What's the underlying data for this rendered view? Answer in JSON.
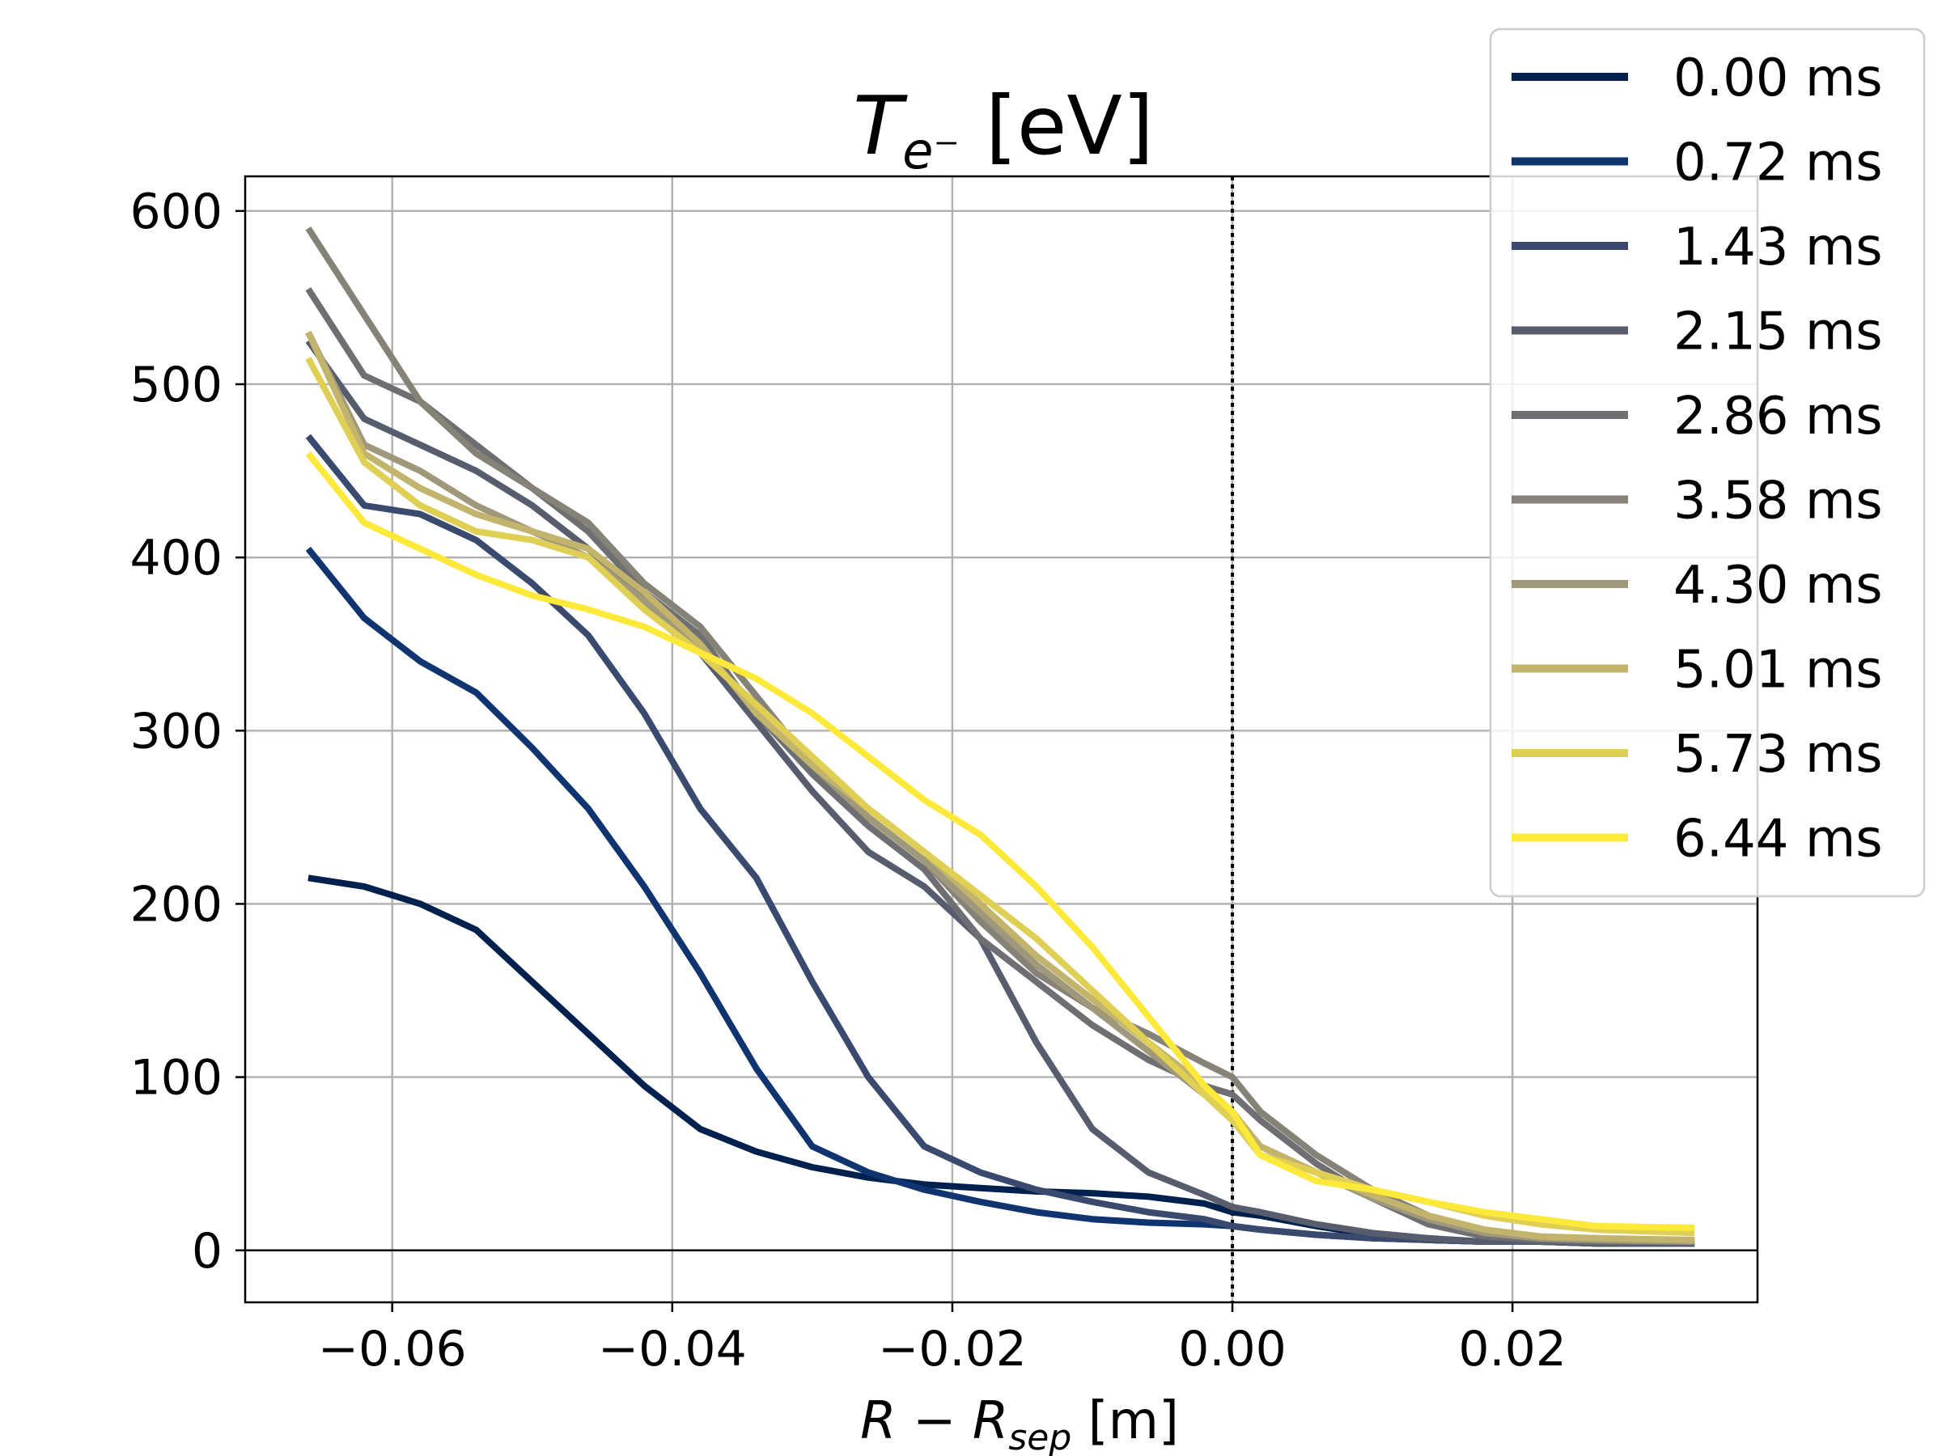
{
  "chart_data": {
    "type": "line",
    "title_main": "T",
    "title_sub": "e⁻",
    "title_unit": " [eV]",
    "xlabel_main": "R − R",
    "xlabel_sub": "sep",
    "xlabel_unit": " [m]",
    "xlim": [
      -0.0705,
      0.0375
    ],
    "ylim": [
      -30,
      620
    ],
    "xticks": [
      -0.06,
      -0.04,
      -0.02,
      0.0,
      0.02
    ],
    "xtick_labels": [
      "−0.06",
      "−0.04",
      "−0.02",
      "0.00",
      "0.02"
    ],
    "yticks": [
      0,
      100,
      200,
      300,
      400,
      500,
      600
    ],
    "ytick_labels": [
      "0",
      "100",
      "200",
      "300",
      "400",
      "500",
      "600"
    ],
    "grid": true,
    "separatrix_x": 0.0,
    "zero_line_y": 0,
    "legend_position": "upper-right",
    "x": [
      -0.066,
      -0.062,
      -0.058,
      -0.054,
      -0.05,
      -0.046,
      -0.042,
      -0.038,
      -0.034,
      -0.03,
      -0.026,
      -0.022,
      -0.018,
      -0.014,
      -0.01,
      -0.006,
      -0.002,
      0.0,
      0.002,
      0.006,
      0.01,
      0.014,
      0.018,
      0.022,
      0.026,
      0.033
    ],
    "series": [
      {
        "name": "0.00 ms",
        "color": "#00204d",
        "values": [
          215,
          210,
          200,
          185,
          155,
          125,
          95,
          70,
          57,
          48,
          42,
          38,
          36,
          34,
          33,
          31,
          27,
          22,
          20,
          14,
          9,
          6,
          5,
          5,
          4,
          4
        ]
      },
      {
        "name": "0.72 ms",
        "color": "#0f3470",
        "values": [
          405,
          365,
          340,
          322,
          290,
          255,
          210,
          160,
          105,
          60,
          45,
          35,
          28,
          22,
          18,
          16,
          15,
          14,
          12,
          9,
          7,
          6,
          5,
          5,
          4,
          4
        ]
      },
      {
        "name": "1.43 ms",
        "color": "#3a4a6e",
        "values": [
          470,
          430,
          425,
          410,
          385,
          355,
          310,
          255,
          215,
          155,
          100,
          60,
          45,
          35,
          28,
          22,
          18,
          14,
          12,
          9,
          7,
          6,
          5,
          5,
          4,
          4
        ]
      },
      {
        "name": "2.15 ms",
        "color": "#575d6d",
        "values": [
          525,
          480,
          465,
          450,
          430,
          405,
          375,
          345,
          305,
          265,
          230,
          210,
          180,
          120,
          70,
          45,
          32,
          25,
          22,
          15,
          10,
          7,
          5,
          5,
          4,
          4
        ]
      },
      {
        "name": "2.86 ms",
        "color": "#6e6f72",
        "values": [
          555,
          505,
          490,
          465,
          440,
          415,
          380,
          355,
          310,
          275,
          245,
          220,
          180,
          155,
          130,
          110,
          95,
          90,
          75,
          50,
          30,
          15,
          8,
          6,
          5,
          5
        ]
      },
      {
        "name": "3.58 ms",
        "color": "#868277",
        "values": [
          590,
          540,
          490,
          460,
          440,
          420,
          385,
          360,
          320,
          280,
          250,
          225,
          190,
          160,
          140,
          125,
          108,
          100,
          80,
          55,
          35,
          20,
          10,
          7,
          6,
          5
        ]
      },
      {
        "name": "4.30 ms",
        "color": "#a0987b",
        "values": [
          530,
          465,
          450,
          430,
          415,
          400,
          375,
          345,
          315,
          280,
          250,
          225,
          195,
          165,
          140,
          115,
          90,
          75,
          60,
          45,
          30,
          18,
          10,
          7,
          6,
          5
        ]
      },
      {
        "name": "5.01 ms",
        "color": "#c2b46c",
        "values": [
          530,
          460,
          440,
          425,
          415,
          405,
          380,
          350,
          310,
          280,
          255,
          230,
          200,
          170,
          145,
          120,
          95,
          80,
          60,
          45,
          32,
          20,
          12,
          8,
          7,
          6
        ]
      },
      {
        "name": "5.73 ms",
        "color": "#e0cf55",
        "values": [
          515,
          455,
          430,
          415,
          410,
          400,
          370,
          345,
          315,
          285,
          255,
          230,
          205,
          180,
          150,
          120,
          90,
          75,
          55,
          45,
          35,
          28,
          20,
          15,
          12,
          10
        ]
      },
      {
        "name": "6.44 ms",
        "color": "#fde93a",
        "values": [
          460,
          420,
          405,
          390,
          378,
          370,
          360,
          345,
          330,
          310,
          285,
          260,
          240,
          210,
          175,
          135,
          95,
          80,
          55,
          40,
          35,
          28,
          22,
          18,
          14,
          13
        ]
      }
    ]
  }
}
